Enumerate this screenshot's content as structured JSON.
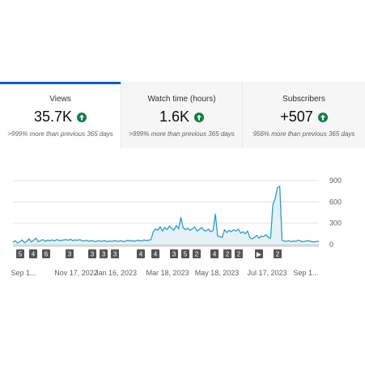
{
  "cards": [
    {
      "title": "Views",
      "value": "35.7K",
      "note": ">999% more than previous 365 days"
    },
    {
      "title": "Watch time (hours)",
      "value": "1.6K",
      "note": ">999% more than previous 365 days"
    },
    {
      "title": "Subscribers",
      "value": "+507",
      "note": "956% more than previous 365 days"
    }
  ],
  "colors": {
    "accent": "#065fd4",
    "line": "#2a9ec9",
    "fill": "#e4f1f7",
    "up": "#0b8043",
    "marker": "#555555"
  },
  "chart_data": {
    "type": "area",
    "ylim": [
      0,
      900
    ],
    "y_ticks": [
      "900",
      "600",
      "300",
      "0"
    ],
    "x_labels": [
      "Sep 1...",
      "Nov 17, 2022",
      "Jan 16, 2023",
      "Mar 18, 2023",
      "May 18, 2023",
      "Jul 17, 2023",
      "Sep 1..."
    ],
    "markers": [
      "5",
      "4",
      "6",
      "3",
      "3",
      "3",
      "3",
      "4",
      "4",
      "3",
      "5",
      "2",
      "4",
      "2",
      "2",
      "▶",
      "2"
    ],
    "values": [
      30,
      55,
      20,
      40,
      65,
      25,
      45,
      80,
      35,
      60,
      90,
      40,
      55,
      70,
      45,
      60,
      55,
      65,
      50,
      70,
      60,
      55,
      65,
      70,
      60,
      75,
      55,
      65,
      60,
      70,
      55,
      50,
      60,
      45,
      55,
      50,
      40,
      55,
      45,
      50,
      55,
      40,
      50,
      45,
      55,
      50,
      45,
      55,
      40,
      50,
      60,
      50,
      55,
      45,
      60,
      55,
      50,
      65,
      55,
      60,
      70,
      180,
      220,
      200,
      250,
      190,
      240,
      210,
      260,
      230,
      200,
      270,
      220,
      380,
      240,
      210,
      230,
      200,
      220,
      250,
      190,
      210,
      240,
      200,
      190,
      220,
      180,
      200,
      430,
      120,
      110,
      100,
      210,
      170,
      200,
      180,
      210,
      190,
      220,
      160,
      180,
      150,
      190,
      100,
      80,
      100,
      130,
      90,
      120,
      110,
      140,
      100,
      90,
      560,
      650,
      800,
      820,
      60,
      50,
      45,
      55,
      40,
      50,
      45,
      60,
      50,
      40,
      45,
      55,
      50,
      40,
      35,
      45,
      40
    ]
  }
}
